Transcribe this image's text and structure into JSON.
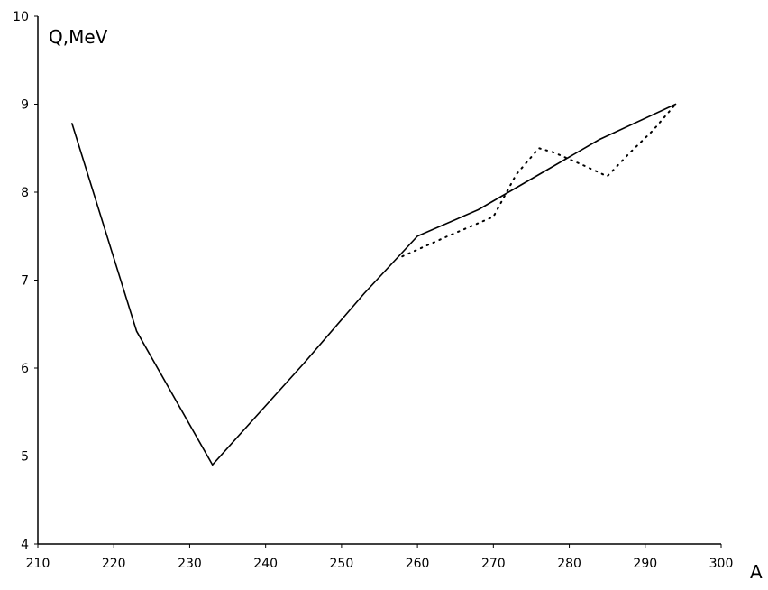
{
  "chart_data": {
    "type": "line",
    "xlabel": "A",
    "ylabel": "Q,MeV",
    "xlim": [
      210,
      300
    ],
    "ylim": [
      4,
      10
    ],
    "x_tick_labels": [
      "210",
      "220",
      "230",
      "240",
      "250",
      "260",
      "270",
      "280",
      "290",
      "300"
    ],
    "y_tick_labels": [
      "4",
      "5",
      "6",
      "7",
      "8",
      "9",
      "10"
    ],
    "grid": false,
    "series": [
      {
        "style": "solid",
        "color": "#000000",
        "x": [
          214.5,
          223,
          233,
          245,
          253,
          260,
          268,
          276,
          284,
          294
        ],
        "y": [
          8.78,
          6.42,
          4.9,
          6.05,
          6.85,
          7.5,
          7.8,
          8.2,
          8.6,
          9.0
        ]
      },
      {
        "style": "dotted",
        "color": "#000000",
        "x": [
          258,
          264,
          270,
          273,
          276,
          278,
          282,
          285,
          288,
          291,
          294
        ],
        "y": [
          7.27,
          7.5,
          7.72,
          8.2,
          8.5,
          8.45,
          8.3,
          8.18,
          8.45,
          8.7,
          9.0
        ]
      }
    ]
  }
}
